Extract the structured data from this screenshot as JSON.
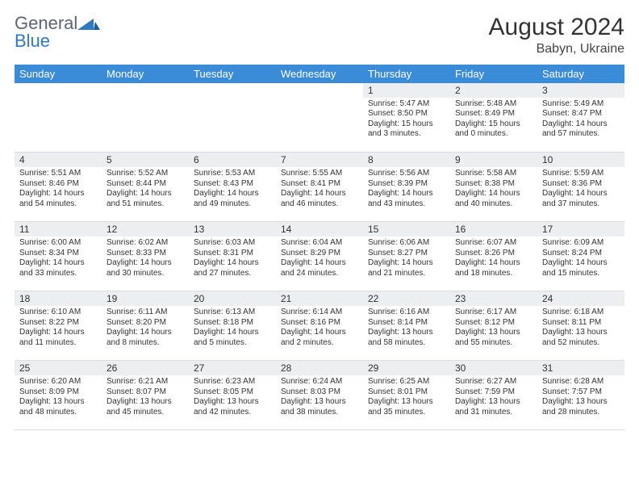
{
  "brand": {
    "name1": "General",
    "name2": "Blue"
  },
  "title": "August 2024",
  "location": "Babyn, Ukraine",
  "weekday_labels": [
    "Sunday",
    "Monday",
    "Tuesday",
    "Wednesday",
    "Thursday",
    "Friday",
    "Saturday"
  ],
  "colors": {
    "header_bg": "#3a8bd8",
    "header_text": "#ffffff",
    "daynum_bg": "#eceeef",
    "border": "#d8dde2",
    "logo_gray": "#5c6670",
    "logo_blue": "#2f79c2"
  },
  "weeks": [
    [
      {
        "n": "",
        "sr": "",
        "ss": "",
        "dl": ""
      },
      {
        "n": "",
        "sr": "",
        "ss": "",
        "dl": ""
      },
      {
        "n": "",
        "sr": "",
        "ss": "",
        "dl": ""
      },
      {
        "n": "",
        "sr": "",
        "ss": "",
        "dl": ""
      },
      {
        "n": "1",
        "sr": "Sunrise: 5:47 AM",
        "ss": "Sunset: 8:50 PM",
        "dl": "Daylight: 15 hours and 3 minutes."
      },
      {
        "n": "2",
        "sr": "Sunrise: 5:48 AM",
        "ss": "Sunset: 8:49 PM",
        "dl": "Daylight: 15 hours and 0 minutes."
      },
      {
        "n": "3",
        "sr": "Sunrise: 5:49 AM",
        "ss": "Sunset: 8:47 PM",
        "dl": "Daylight: 14 hours and 57 minutes."
      }
    ],
    [
      {
        "n": "4",
        "sr": "Sunrise: 5:51 AM",
        "ss": "Sunset: 8:46 PM",
        "dl": "Daylight: 14 hours and 54 minutes."
      },
      {
        "n": "5",
        "sr": "Sunrise: 5:52 AM",
        "ss": "Sunset: 8:44 PM",
        "dl": "Daylight: 14 hours and 51 minutes."
      },
      {
        "n": "6",
        "sr": "Sunrise: 5:53 AM",
        "ss": "Sunset: 8:43 PM",
        "dl": "Daylight: 14 hours and 49 minutes."
      },
      {
        "n": "7",
        "sr": "Sunrise: 5:55 AM",
        "ss": "Sunset: 8:41 PM",
        "dl": "Daylight: 14 hours and 46 minutes."
      },
      {
        "n": "8",
        "sr": "Sunrise: 5:56 AM",
        "ss": "Sunset: 8:39 PM",
        "dl": "Daylight: 14 hours and 43 minutes."
      },
      {
        "n": "9",
        "sr": "Sunrise: 5:58 AM",
        "ss": "Sunset: 8:38 PM",
        "dl": "Daylight: 14 hours and 40 minutes."
      },
      {
        "n": "10",
        "sr": "Sunrise: 5:59 AM",
        "ss": "Sunset: 8:36 PM",
        "dl": "Daylight: 14 hours and 37 minutes."
      }
    ],
    [
      {
        "n": "11",
        "sr": "Sunrise: 6:00 AM",
        "ss": "Sunset: 8:34 PM",
        "dl": "Daylight: 14 hours and 33 minutes."
      },
      {
        "n": "12",
        "sr": "Sunrise: 6:02 AM",
        "ss": "Sunset: 8:33 PM",
        "dl": "Daylight: 14 hours and 30 minutes."
      },
      {
        "n": "13",
        "sr": "Sunrise: 6:03 AM",
        "ss": "Sunset: 8:31 PM",
        "dl": "Daylight: 14 hours and 27 minutes."
      },
      {
        "n": "14",
        "sr": "Sunrise: 6:04 AM",
        "ss": "Sunset: 8:29 PM",
        "dl": "Daylight: 14 hours and 24 minutes."
      },
      {
        "n": "15",
        "sr": "Sunrise: 6:06 AM",
        "ss": "Sunset: 8:27 PM",
        "dl": "Daylight: 14 hours and 21 minutes."
      },
      {
        "n": "16",
        "sr": "Sunrise: 6:07 AM",
        "ss": "Sunset: 8:26 PM",
        "dl": "Daylight: 14 hours and 18 minutes."
      },
      {
        "n": "17",
        "sr": "Sunrise: 6:09 AM",
        "ss": "Sunset: 8:24 PM",
        "dl": "Daylight: 14 hours and 15 minutes."
      }
    ],
    [
      {
        "n": "18",
        "sr": "Sunrise: 6:10 AM",
        "ss": "Sunset: 8:22 PM",
        "dl": "Daylight: 14 hours and 11 minutes."
      },
      {
        "n": "19",
        "sr": "Sunrise: 6:11 AM",
        "ss": "Sunset: 8:20 PM",
        "dl": "Daylight: 14 hours and 8 minutes."
      },
      {
        "n": "20",
        "sr": "Sunrise: 6:13 AM",
        "ss": "Sunset: 8:18 PM",
        "dl": "Daylight: 14 hours and 5 minutes."
      },
      {
        "n": "21",
        "sr": "Sunrise: 6:14 AM",
        "ss": "Sunset: 8:16 PM",
        "dl": "Daylight: 14 hours and 2 minutes."
      },
      {
        "n": "22",
        "sr": "Sunrise: 6:16 AM",
        "ss": "Sunset: 8:14 PM",
        "dl": "Daylight: 13 hours and 58 minutes."
      },
      {
        "n": "23",
        "sr": "Sunrise: 6:17 AM",
        "ss": "Sunset: 8:12 PM",
        "dl": "Daylight: 13 hours and 55 minutes."
      },
      {
        "n": "24",
        "sr": "Sunrise: 6:18 AM",
        "ss": "Sunset: 8:11 PM",
        "dl": "Daylight: 13 hours and 52 minutes."
      }
    ],
    [
      {
        "n": "25",
        "sr": "Sunrise: 6:20 AM",
        "ss": "Sunset: 8:09 PM",
        "dl": "Daylight: 13 hours and 48 minutes."
      },
      {
        "n": "26",
        "sr": "Sunrise: 6:21 AM",
        "ss": "Sunset: 8:07 PM",
        "dl": "Daylight: 13 hours and 45 minutes."
      },
      {
        "n": "27",
        "sr": "Sunrise: 6:23 AM",
        "ss": "Sunset: 8:05 PM",
        "dl": "Daylight: 13 hours and 42 minutes."
      },
      {
        "n": "28",
        "sr": "Sunrise: 6:24 AM",
        "ss": "Sunset: 8:03 PM",
        "dl": "Daylight: 13 hours and 38 minutes."
      },
      {
        "n": "29",
        "sr": "Sunrise: 6:25 AM",
        "ss": "Sunset: 8:01 PM",
        "dl": "Daylight: 13 hours and 35 minutes."
      },
      {
        "n": "30",
        "sr": "Sunrise: 6:27 AM",
        "ss": "Sunset: 7:59 PM",
        "dl": "Daylight: 13 hours and 31 minutes."
      },
      {
        "n": "31",
        "sr": "Sunrise: 6:28 AM",
        "ss": "Sunset: 7:57 PM",
        "dl": "Daylight: 13 hours and 28 minutes."
      }
    ]
  ]
}
